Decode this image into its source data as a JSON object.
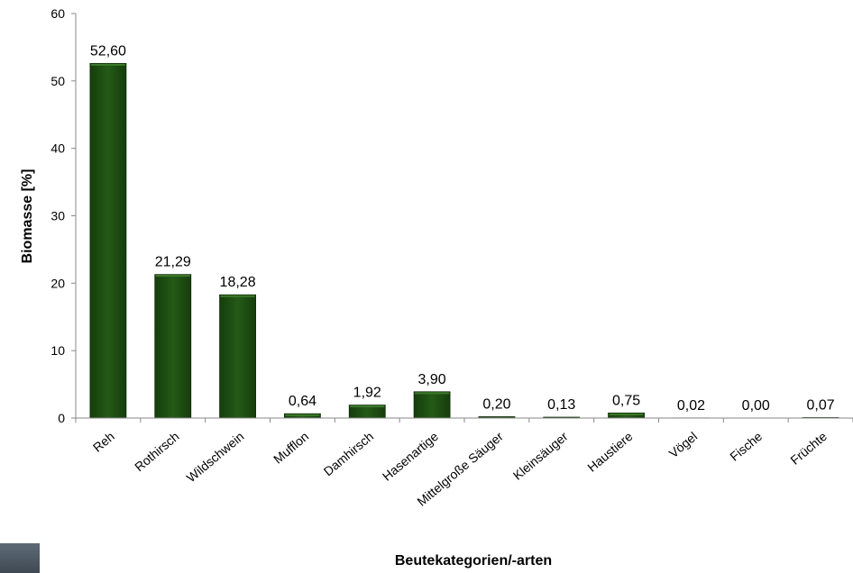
{
  "chart_data": {
    "type": "bar",
    "categories": [
      "Reh",
      "Rothirsch",
      "Wildschwein",
      "Mufflon",
      "Damhirsch",
      "Hasenartige",
      "Mittelgroße Säuger",
      "Kleinsäuger",
      "Haustiere",
      "Vögel",
      "Fische",
      "Früchte"
    ],
    "values": [
      52.6,
      21.29,
      18.28,
      0.64,
      1.92,
      3.9,
      0.2,
      0.13,
      0.75,
      0.02,
      0.0,
      0.07
    ],
    "data_labels": [
      "52,60",
      "21,29",
      "18,28",
      "0,64",
      "1,92",
      "3,90",
      "0,20",
      "0,13",
      "0,75",
      "0,02",
      "0,00",
      "0,07"
    ],
    "title": "",
    "xlabel": "Beutekategorien/-arten",
    "ylabel": "Biomasse [%]",
    "ylim": [
      0,
      60
    ],
    "yticks": [
      0,
      10,
      20,
      30,
      40,
      50,
      60
    ],
    "grid": false,
    "legend": "none",
    "bar_color": "#1e4d12",
    "bar_color_light": "#3d7a2a"
  }
}
